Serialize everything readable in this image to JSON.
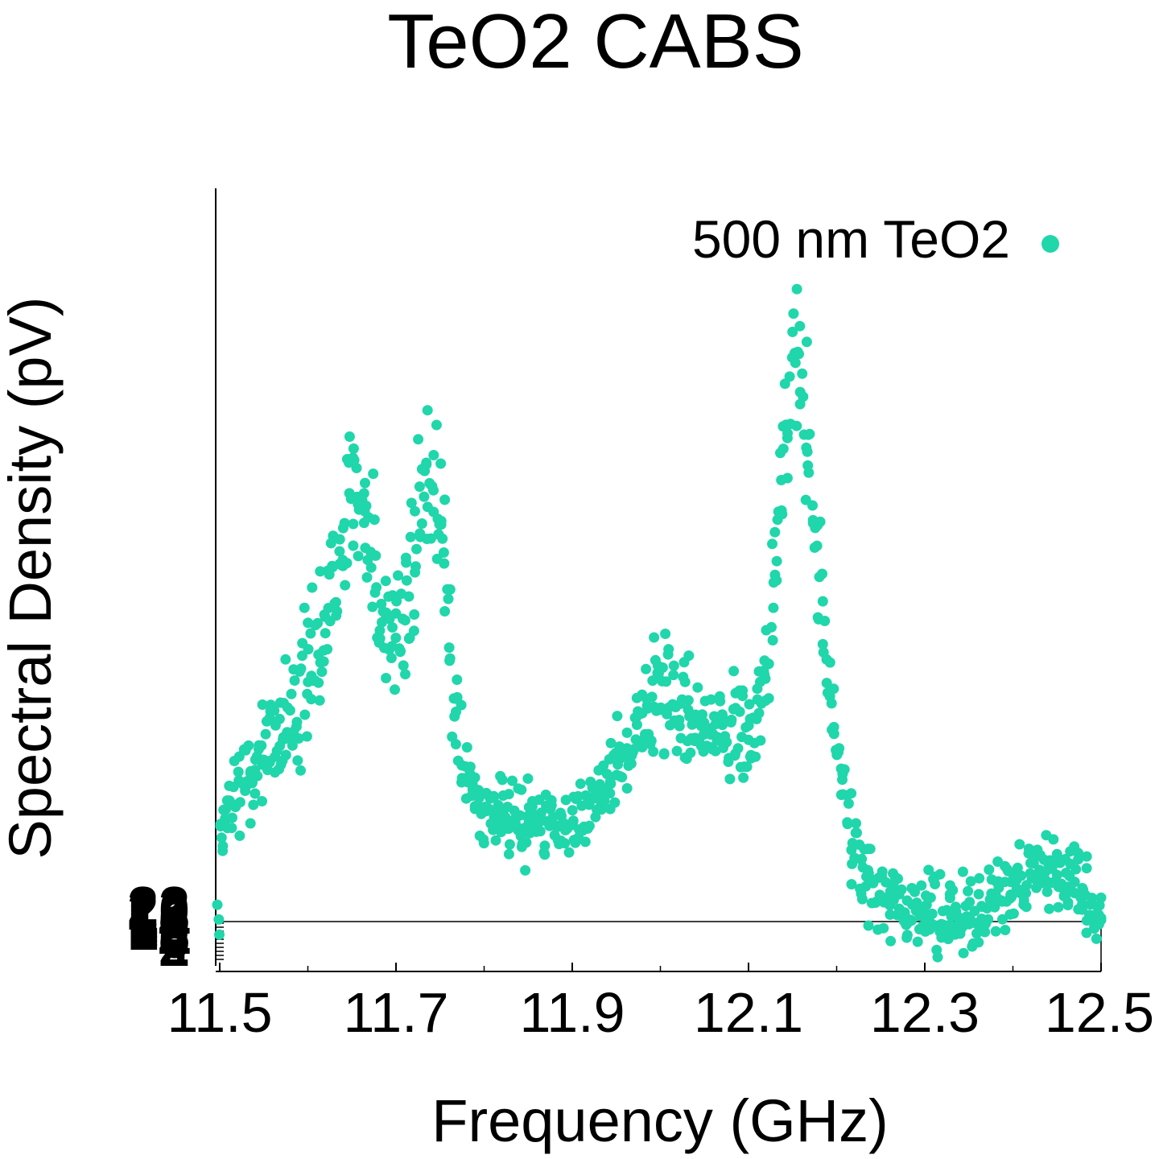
{
  "chart_data": {
    "type": "scatter",
    "title": "TeO2 CABS",
    "xlabel": "Frequency (GHz)",
    "ylabel": "Spectral Density (pV)",
    "xlim": [
      11.495,
      12.5
    ],
    "x_ticks": [
      "11.5",
      "11.7",
      "11.9",
      "12.1",
      "12.3",
      "12.5"
    ],
    "y_ticks_overlapping": [
      "2",
      "4",
      "6",
      "8",
      "10",
      "12",
      "14",
      "16",
      "18",
      "20",
      "22"
    ],
    "legend_position": "top-right",
    "grid": false,
    "series": [
      {
        "name": "500 nm TeO2",
        "color": "#20d6ab",
        "points": [
          [
            11.5,
            1030
          ],
          [
            11.505,
            1015
          ],
          [
            11.51,
            1000
          ],
          [
            11.515,
            990
          ],
          [
            11.52,
            985
          ],
          [
            11.525,
            975
          ],
          [
            11.53,
            970
          ],
          [
            11.535,
            960
          ],
          [
            11.54,
            955
          ],
          [
            11.545,
            945
          ],
          [
            11.55,
            935
          ],
          [
            11.555,
            925
          ],
          [
            11.56,
            920
          ],
          [
            11.565,
            910
          ],
          [
            11.57,
            905
          ],
          [
            11.575,
            895
          ],
          [
            11.58,
            885
          ],
          [
            11.585,
            875
          ],
          [
            11.59,
            870
          ],
          [
            11.595,
            855
          ],
          [
            11.6,
            840
          ],
          [
            11.605,
            825
          ],
          [
            11.61,
            810
          ],
          [
            11.615,
            790
          ],
          [
            11.62,
            770
          ],
          [
            11.625,
            745
          ],
          [
            11.63,
            720
          ],
          [
            11.635,
            690
          ],
          [
            11.64,
            655
          ],
          [
            11.645,
            625
          ],
          [
            11.65,
            610
          ],
          [
            11.655,
            600
          ],
          [
            11.66,
            620
          ],
          [
            11.665,
            645
          ],
          [
            11.67,
            675
          ],
          [
            11.675,
            705
          ],
          [
            11.68,
            740
          ],
          [
            11.685,
            770
          ],
          [
            11.69,
            795
          ],
          [
            11.695,
            810
          ],
          [
            11.7,
            805
          ],
          [
            11.705,
            790
          ],
          [
            11.71,
            770
          ],
          [
            11.715,
            740
          ],
          [
            11.72,
            700
          ],
          [
            11.725,
            660
          ],
          [
            11.73,
            620
          ],
          [
            11.735,
            600
          ],
          [
            11.74,
            595
          ],
          [
            11.745,
            610
          ],
          [
            11.75,
            650
          ],
          [
            11.755,
            710
          ],
          [
            11.76,
            780
          ],
          [
            11.765,
            850
          ],
          [
            11.77,
            905
          ],
          [
            11.775,
            940
          ],
          [
            11.78,
            965
          ],
          [
            11.785,
            980
          ],
          [
            11.79,
            990
          ],
          [
            11.795,
            998
          ],
          [
            11.8,
            1000
          ],
          [
            11.805,
            1002
          ],
          [
            11.81,
            1005
          ],
          [
            11.815,
            1008
          ],
          [
            11.82,
            1012
          ],
          [
            11.825,
            1015
          ],
          [
            11.83,
            1018
          ],
          [
            11.835,
            1020
          ],
          [
            11.84,
            1022
          ],
          [
            11.845,
            1024
          ],
          [
            11.85,
            1025
          ],
          [
            11.855,
            1026
          ],
          [
            11.86,
            1027
          ],
          [
            11.865,
            1028
          ],
          [
            11.87,
            1028
          ],
          [
            11.875,
            1027
          ],
          [
            11.88,
            1026
          ],
          [
            11.885,
            1024
          ],
          [
            11.89,
            1022
          ],
          [
            11.895,
            1019
          ],
          [
            11.9,
            1016
          ],
          [
            11.905,
            1012
          ],
          [
            11.91,
            1008
          ],
          [
            11.915,
            1003
          ],
          [
            11.92,
            998
          ],
          [
            11.925,
            992
          ],
          [
            11.93,
            985
          ],
          [
            11.935,
            978
          ],
          [
            11.94,
            970
          ],
          [
            11.945,
            962
          ],
          [
            11.95,
            953
          ],
          [
            11.955,
            944
          ],
          [
            11.96,
            935
          ],
          [
            11.965,
            925
          ],
          [
            11.97,
            915
          ],
          [
            11.975,
            905
          ],
          [
            11.98,
            895
          ],
          [
            11.985,
            885
          ],
          [
            11.99,
            878
          ],
          [
            11.995,
            872
          ],
          [
            12.0,
            868
          ],
          [
            12.005,
            865
          ],
          [
            12.01,
            866
          ],
          [
            12.015,
            870
          ],
          [
            12.02,
            876
          ],
          [
            12.025,
            882
          ],
          [
            12.03,
            890
          ],
          [
            12.035,
            898
          ],
          [
            12.04,
            905
          ],
          [
            12.045,
            912
          ],
          [
            12.05,
            916
          ],
          [
            12.055,
            918
          ],
          [
            12.06,
            915
          ],
          [
            12.065,
            910
          ],
          [
            12.07,
            902
          ],
          [
            12.075,
            895
          ],
          [
            12.08,
            890
          ],
          [
            12.085,
            888
          ],
          [
            12.09,
            890
          ],
          [
            12.095,
            895
          ],
          [
            12.1,
            900
          ],
          [
            12.105,
            902
          ],
          [
            12.11,
            895
          ],
          [
            12.115,
            875
          ],
          [
            12.12,
            840
          ],
          [
            12.125,
            790
          ],
          [
            12.13,
            730
          ],
          [
            12.135,
            660
          ],
          [
            12.14,
            580
          ],
          [
            12.145,
            500
          ],
          [
            12.15,
            440
          ],
          [
            12.155,
            420
          ],
          [
            12.16,
            450
          ],
          [
            12.165,
            510
          ],
          [
            12.17,
            580
          ],
          [
            12.175,
            650
          ],
          [
            12.18,
            710
          ],
          [
            12.185,
            770
          ],
          [
            12.19,
            830
          ],
          [
            12.195,
            880
          ],
          [
            12.2,
            925
          ],
          [
            12.205,
            965
          ],
          [
            12.21,
            1000
          ],
          [
            12.215,
            1030
          ],
          [
            12.22,
            1055
          ],
          [
            12.225,
            1072
          ],
          [
            12.23,
            1085
          ],
          [
            12.235,
            1095
          ],
          [
            12.24,
            1102
          ],
          [
            12.245,
            1108
          ],
          [
            12.25,
            1113
          ],
          [
            12.255,
            1117
          ],
          [
            12.26,
            1120
          ],
          [
            12.265,
            1123
          ],
          [
            12.27,
            1126
          ],
          [
            12.275,
            1128
          ],
          [
            12.28,
            1130
          ],
          [
            12.285,
            1132
          ],
          [
            12.29,
            1134
          ],
          [
            12.295,
            1135
          ],
          [
            12.3,
            1136
          ],
          [
            12.305,
            1137
          ],
          [
            12.31,
            1137
          ],
          [
            12.315,
            1138
          ],
          [
            12.32,
            1138
          ],
          [
            12.325,
            1138
          ],
          [
            12.33,
            1137
          ],
          [
            12.335,
            1136
          ],
          [
            12.34,
            1135
          ],
          [
            12.345,
            1134
          ],
          [
            12.35,
            1133
          ],
          [
            12.355,
            1131
          ],
          [
            12.36,
            1130
          ],
          [
            12.365,
            1128
          ],
          [
            12.37,
            1125
          ],
          [
            12.375,
            1122
          ],
          [
            12.38,
            1119
          ],
          [
            12.385,
            1116
          ],
          [
            12.39,
            1112
          ],
          [
            12.395,
            1108
          ],
          [
            12.4,
            1104
          ],
          [
            12.405,
            1100
          ],
          [
            12.41,
            1096
          ],
          [
            12.415,
            1092
          ],
          [
            12.42,
            1088
          ],
          [
            12.425,
            1085
          ],
          [
            12.43,
            1082
          ],
          [
            12.435,
            1080
          ],
          [
            12.44,
            1079
          ],
          [
            12.445,
            1080
          ],
          [
            12.45,
            1082
          ],
          [
            12.455,
            1085
          ],
          [
            12.46,
            1090
          ],
          [
            12.465,
            1096
          ],
          [
            12.47,
            1102
          ],
          [
            12.475,
            1108
          ],
          [
            12.48,
            1114
          ],
          [
            12.485,
            1120
          ],
          [
            12.49,
            1126
          ],
          [
            12.495,
            1132
          ],
          [
            12.5,
            1138
          ]
        ]
      }
    ]
  }
}
